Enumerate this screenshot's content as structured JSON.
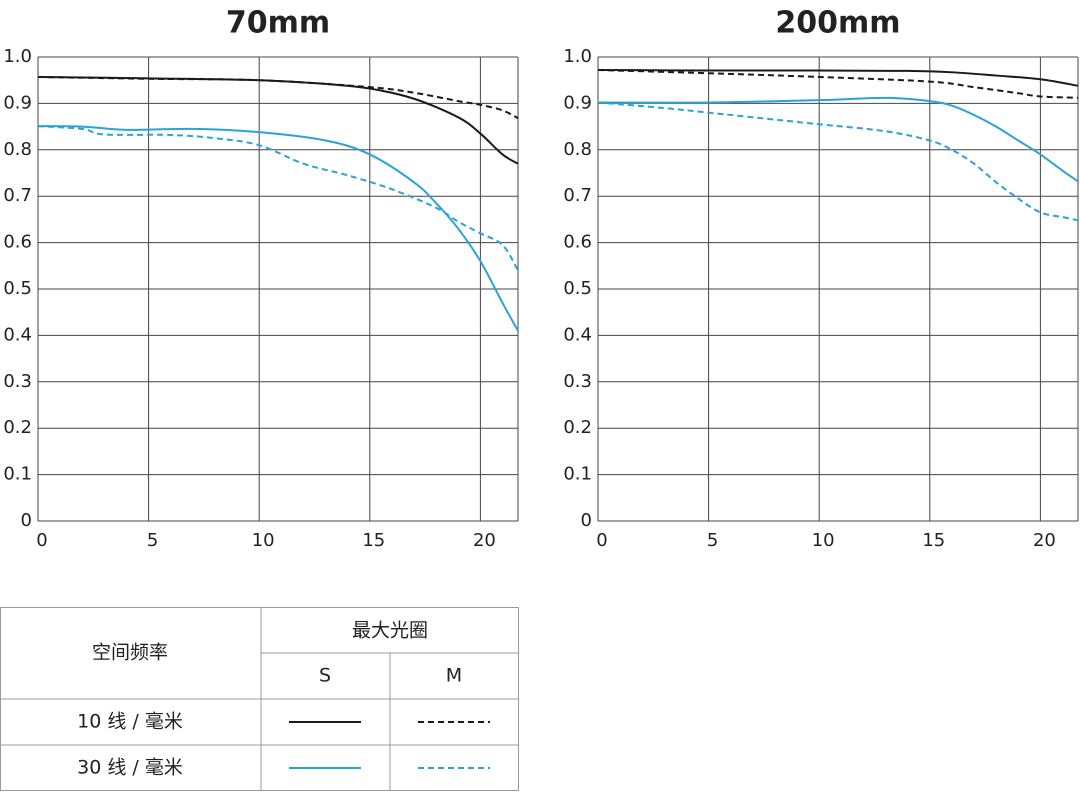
{
  "chart_data": [
    {
      "type": "line",
      "title": "70mm",
      "xlim": [
        0,
        21.7
      ],
      "xticks": [
        0,
        5,
        10,
        15,
        20
      ],
      "ylim": [
        0,
        1
      ],
      "yticks": [
        0,
        0.1,
        0.2,
        0.3,
        0.4,
        0.5,
        0.6,
        0.7,
        0.8,
        0.9,
        {
          "value": 1,
          "label": "1.0"
        }
      ],
      "grid": true,
      "series": [
        {
          "color": "#1a1a1a",
          "dashed": false,
          "x": [
            0,
            5,
            10,
            13,
            15,
            17,
            19,
            20,
            21,
            21.7
          ],
          "values": [
            0.957,
            0.954,
            0.95,
            0.942,
            0.932,
            0.91,
            0.87,
            0.835,
            0.79,
            0.77
          ]
        },
        {
          "color": "#1a1a1a",
          "dashed": true,
          "x": [
            0,
            5,
            10,
            15,
            17,
            19,
            20,
            21,
            21.7
          ],
          "values": [
            0.957,
            0.953,
            0.95,
            0.935,
            0.923,
            0.905,
            0.897,
            0.885,
            0.868
          ]
        },
        {
          "color": "#2aa3d6",
          "dashed": false,
          "x": [
            0,
            2,
            4,
            7,
            10,
            13,
            15,
            17,
            18,
            19,
            20,
            21,
            21.7
          ],
          "values": [
            0.851,
            0.85,
            0.843,
            0.845,
            0.838,
            0.82,
            0.79,
            0.73,
            0.685,
            0.63,
            0.56,
            0.47,
            0.41
          ]
        },
        {
          "color": "#2aa3d6",
          "dashed": true,
          "x": [
            0,
            2,
            3,
            6,
            8,
            10,
            12,
            14,
            16,
            18,
            19,
            20,
            21,
            21.7
          ],
          "values": [
            0.851,
            0.845,
            0.833,
            0.832,
            0.825,
            0.81,
            0.77,
            0.745,
            0.715,
            0.675,
            0.645,
            0.62,
            0.595,
            0.54
          ]
        }
      ]
    },
    {
      "type": "line",
      "title": "200mm",
      "xlim": [
        0,
        21.7
      ],
      "xticks": [
        0,
        5,
        10,
        15,
        20
      ],
      "ylim": [
        0,
        1
      ],
      "yticks": [
        0,
        0.1,
        0.2,
        0.3,
        0.4,
        0.5,
        0.6,
        0.7,
        0.8,
        0.9,
        {
          "value": 1,
          "label": "1.0"
        }
      ],
      "grid": true,
      "series": [
        {
          "color": "#1a1a1a",
          "dashed": false,
          "x": [
            0,
            5,
            10,
            14,
            16,
            18,
            20,
            21.7
          ],
          "values": [
            0.972,
            0.971,
            0.971,
            0.97,
            0.967,
            0.96,
            0.952,
            0.938
          ]
        },
        {
          "color": "#1a1a1a",
          "dashed": true,
          "x": [
            0,
            5,
            10,
            15,
            17,
            19,
            20,
            21.7
          ],
          "values": [
            0.972,
            0.965,
            0.957,
            0.947,
            0.935,
            0.922,
            0.915,
            0.912
          ]
        },
        {
          "color": "#2aa3d6",
          "dashed": false,
          "x": [
            0,
            5,
            10,
            13,
            15,
            16,
            17,
            18,
            19,
            20,
            21,
            21.7
          ],
          "values": [
            0.902,
            0.902,
            0.907,
            0.912,
            0.905,
            0.895,
            0.875,
            0.85,
            0.82,
            0.79,
            0.755,
            0.732
          ]
        },
        {
          "color": "#2aa3d6",
          "dashed": true,
          "x": [
            0,
            3,
            5,
            8,
            10,
            13,
            15,
            16,
            17,
            18,
            19,
            20,
            21,
            21.7
          ],
          "values": [
            0.902,
            0.89,
            0.88,
            0.865,
            0.855,
            0.84,
            0.82,
            0.8,
            0.77,
            0.73,
            0.695,
            0.665,
            0.655,
            0.648
          ]
        }
      ]
    }
  ],
  "legend_table": {
    "row_header": "空间频率",
    "group_header": "最大光圈",
    "columns": [
      "S",
      "M"
    ],
    "rows": [
      "10 线 / 毫米",
      "30 线 / 毫米"
    ]
  }
}
